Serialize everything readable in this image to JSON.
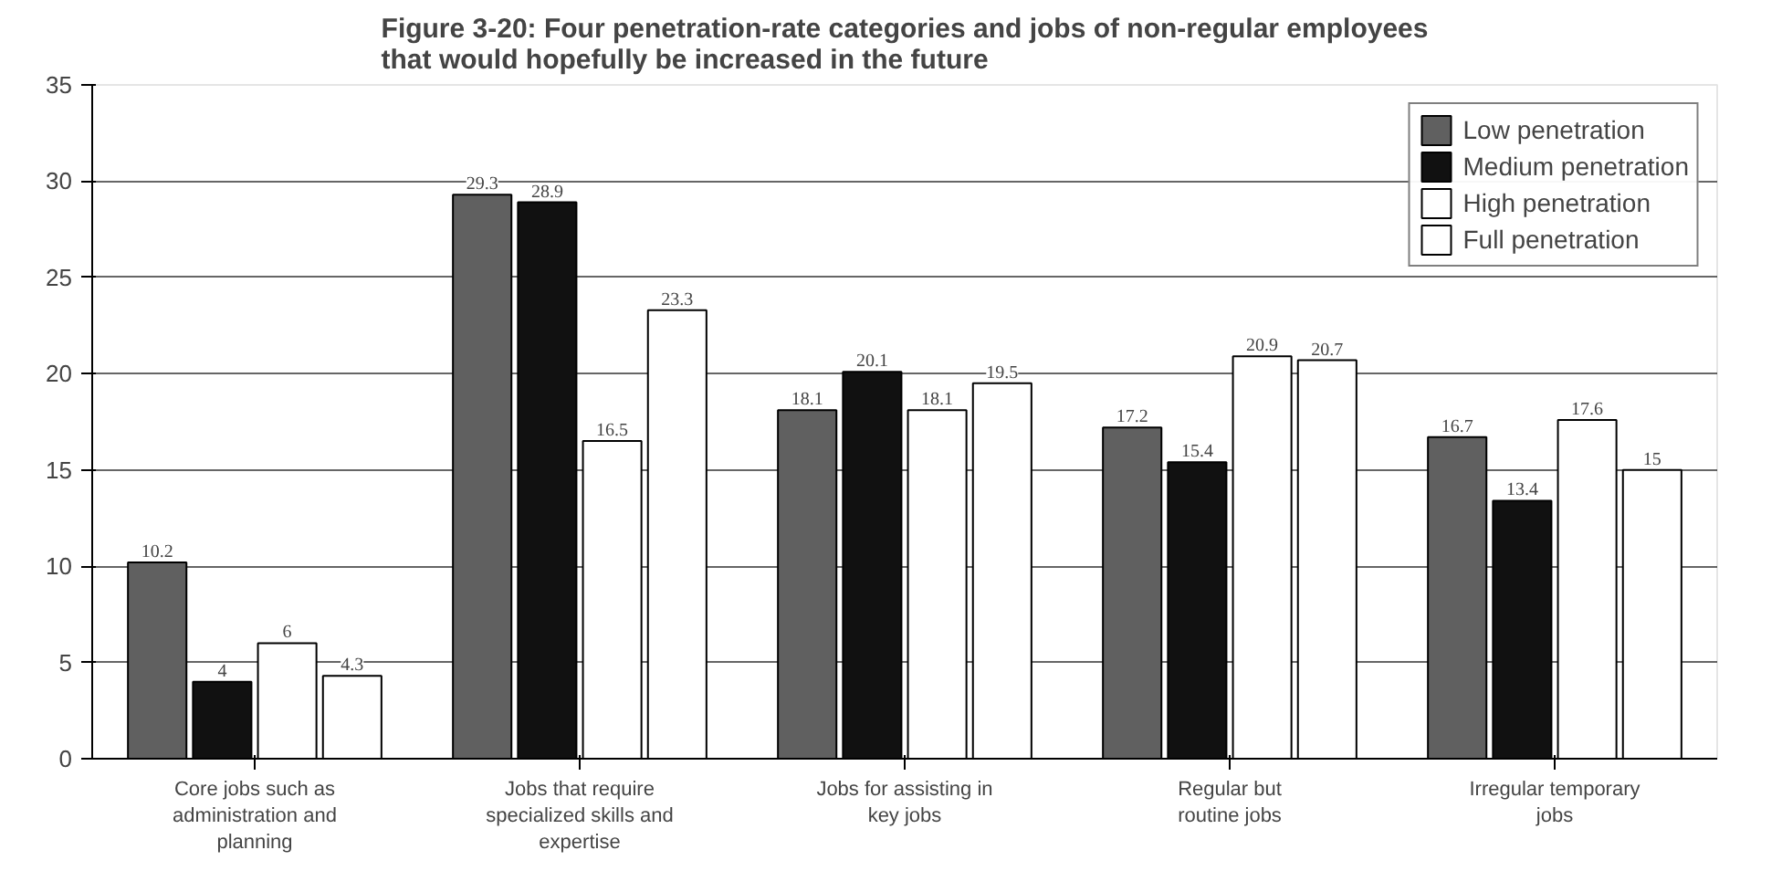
{
  "chart_data": {
    "type": "bar",
    "title": "Figure 3-20: Four penetration-rate categories and jobs of non-regular employees\nthat would hopefully be increased in the future",
    "categories": [
      "Core jobs such as\nadministration and\nplanning",
      "Jobs that require\nspecialized skills and\nexpertise",
      "Jobs for assisting in\nkey jobs",
      "Regular but\nroutine jobs",
      "Irregular temporary\njobs"
    ],
    "series": [
      {
        "name": "Low penetration",
        "color": "#606060",
        "values": [
          10.2,
          29.3,
          18.1,
          17.2,
          16.7
        ]
      },
      {
        "name": "Medium penetration",
        "color": "#111111",
        "values": [
          4,
          28.9,
          20.1,
          15.4,
          13.4
        ]
      },
      {
        "name": "High penetration",
        "color": "#ffffff",
        "values": [
          6,
          16.5,
          18.1,
          20.9,
          17.6
        ]
      },
      {
        "name": "Full penetration",
        "color": "#ffffff",
        "values": [
          4.3,
          23.3,
          19.5,
          20.7,
          15
        ]
      }
    ],
    "ylim": [
      0,
      35
    ],
    "yticks": [
      0,
      5,
      10,
      15,
      20,
      25,
      30,
      35
    ],
    "grid": "y",
    "legend": "top right",
    "data_labels": true
  }
}
